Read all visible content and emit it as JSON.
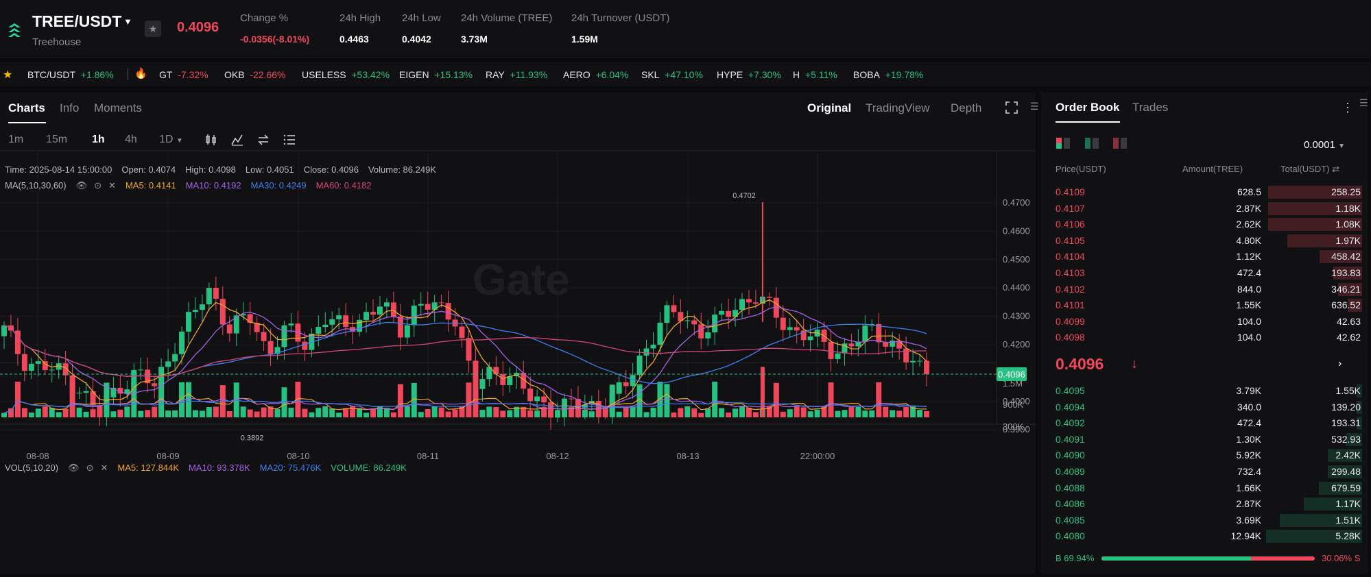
{
  "header": {
    "pair": "TREE/USDT",
    "subtitle": "Treehouse",
    "last_price": "0.4096",
    "stats": {
      "change_label": "Change %",
      "change_value": "-0.0356(-8.01%)",
      "high_label": "24h High",
      "high_value": "0.4463",
      "low_label": "24h Low",
      "low_value": "0.4042",
      "volume_label": "24h Volume (TREE)",
      "volume_value": "3.73M",
      "turnover_label": "24h Turnover (USDT)",
      "turnover_value": "1.59M"
    }
  },
  "ticker": [
    {
      "symbol": "BTC/USDT",
      "change": "+1.86%",
      "dir": "up"
    },
    {
      "symbol": "GT",
      "change": "-7.32%",
      "dir": "down"
    },
    {
      "symbol": "OKB",
      "change": "-22.66%",
      "dir": "down"
    },
    {
      "symbol": "USELESS",
      "change": "+53.42%",
      "dir": "up"
    },
    {
      "symbol": "EIGEN",
      "change": "+15.13%",
      "dir": "up"
    },
    {
      "symbol": "RAY",
      "change": "+11.93%",
      "dir": "up"
    },
    {
      "symbol": "AERO",
      "change": "+6.04%",
      "dir": "up"
    },
    {
      "symbol": "SKL",
      "change": "+47.10%",
      "dir": "up"
    },
    {
      "symbol": "HYPE",
      "change": "+7.30%",
      "dir": "up"
    },
    {
      "symbol": "H",
      "change": "+5.11%",
      "dir": "up"
    },
    {
      "symbol": "BOBA",
      "change": "+19.78%",
      "dir": "up"
    }
  ],
  "chart_panel": {
    "tabs": [
      "Charts",
      "Info",
      "Moments"
    ],
    "views": [
      "Original",
      "TradingView",
      "Depth"
    ],
    "intervals": [
      "1m",
      "15m",
      "1h",
      "4h",
      "1D"
    ],
    "ohlc": {
      "time": "Time: 2025-08-14 15:00:00",
      "open": "Open: 0.4074",
      "high": "High: 0.4098",
      "low": "Low: 0.4051",
      "close": "Close: 0.4096",
      "volume": "Volume: 86.249K"
    },
    "ma_legend": {
      "label": "MA(5,10,30,60)",
      "ma5": "MA5: 0.4141",
      "ma10": "MA10: 0.4192",
      "ma30": "MA30: 0.4249",
      "ma60": "MA60: 0.4182"
    },
    "vol_legend": {
      "label": "VOL(5,10,20)",
      "ma5": "MA5: 127.844K",
      "ma10": "MA10: 93.378K",
      "ma20": "MA20: 75.476K",
      "volume": "VOLUME: 86.249K"
    },
    "watermark": "Gate"
  },
  "chart_data": {
    "type": "candlestick",
    "interval": "1h",
    "price_axis": [
      "0.4700",
      "0.4600",
      "0.4500",
      "0.4400",
      "0.4300",
      "0.4200",
      "0.4000",
      "0.3900"
    ],
    "current_price_tag": "0.4096",
    "max_annotation": "0.4702",
    "min_annotation": "0.3892",
    "volume_axis": [
      "1.5M",
      "900K",
      "300K"
    ],
    "time_axis": [
      "08-08",
      "08-09",
      "08-10",
      "08-11",
      "08-12",
      "08-13",
      "22:00:00"
    ],
    "close_path": [
      0.425,
      0.415,
      0.412,
      0.41,
      0.405,
      0.395,
      0.405,
      0.41,
      0.405,
      0.42,
      0.43,
      0.44,
      0.425,
      0.43,
      0.418,
      0.425,
      0.42,
      0.43,
      0.425,
      0.43,
      0.434,
      0.425,
      0.435,
      0.432,
      0.43,
      0.405,
      0.41,
      0.41,
      0.4,
      0.398,
      0.399,
      0.398,
      0.4,
      0.405,
      0.418,
      0.43,
      0.43,
      0.425,
      0.428,
      0.435,
      0.437,
      0.43,
      0.425,
      0.422,
      0.418,
      0.42,
      0.425,
      0.422,
      0.414,
      0.4096
    ],
    "ma_colors": {
      "ma5": "#f5a623",
      "ma10": "#a561e8",
      "ma30": "#3f7ff0",
      "ma60": "#d5457a"
    }
  },
  "orderbook": {
    "tabs": [
      "Order Book",
      "Trades"
    ],
    "precision": "0.0001",
    "columns": [
      "Price(USDT)",
      "Amount(TREE)",
      "Total(USDT)"
    ],
    "asks": [
      {
        "price": "0.4109",
        "amount": "628.5",
        "total": "258.25",
        "depth": 0.98
      },
      {
        "price": "0.4107",
        "amount": "2.87K",
        "total": "1.18K",
        "depth": 0.98
      },
      {
        "price": "0.4106",
        "amount": "2.62K",
        "total": "1.08K",
        "depth": 0.98
      },
      {
        "price": "0.4105",
        "amount": "4.80K",
        "total": "1.97K",
        "depth": 0.78
      },
      {
        "price": "0.4104",
        "amount": "1.12K",
        "total": "458.42",
        "depth": 0.44
      },
      {
        "price": "0.4103",
        "amount": "472.4",
        "total": "193.83",
        "depth": 0.3
      },
      {
        "price": "0.4102",
        "amount": "844.0",
        "total": "346.21",
        "depth": 0.25
      },
      {
        "price": "0.4101",
        "amount": "1.55K",
        "total": "636.52",
        "depth": 0.15
      },
      {
        "price": "0.4099",
        "amount": "104.0",
        "total": "42.63",
        "depth": 0.0
      },
      {
        "price": "0.4098",
        "amount": "104.0",
        "total": "42.62",
        "depth": 0.0
      }
    ],
    "mid_price": "0.4096",
    "bids": [
      {
        "price": "0.4095",
        "amount": "3.79K",
        "total": "1.55K",
        "depth": 0.06
      },
      {
        "price": "0.4094",
        "amount": "340.0",
        "total": "139.20",
        "depth": 0.06
      },
      {
        "price": "0.4092",
        "amount": "472.4",
        "total": "193.31",
        "depth": 0.06
      },
      {
        "price": "0.4091",
        "amount": "1.30K",
        "total": "532.93",
        "depth": 0.17
      },
      {
        "price": "0.4090",
        "amount": "5.92K",
        "total": "2.42K",
        "depth": 0.36
      },
      {
        "price": "0.4089",
        "amount": "732.4",
        "total": "299.48",
        "depth": 0.36
      },
      {
        "price": "0.4088",
        "amount": "1.66K",
        "total": "679.59",
        "depth": 0.45
      },
      {
        "price": "0.4086",
        "amount": "2.87K",
        "total": "1.17K",
        "depth": 0.61
      },
      {
        "price": "0.4085",
        "amount": "3.69K",
        "total": "1.51K",
        "depth": 0.86
      },
      {
        "price": "0.4080",
        "amount": "12.94K",
        "total": "5.28K",
        "depth": 1.0
      }
    ],
    "buy_ratio_label": "B 69.94%",
    "sell_ratio_label": "30.06% S",
    "buy_ratio": 0.6994
  }
}
